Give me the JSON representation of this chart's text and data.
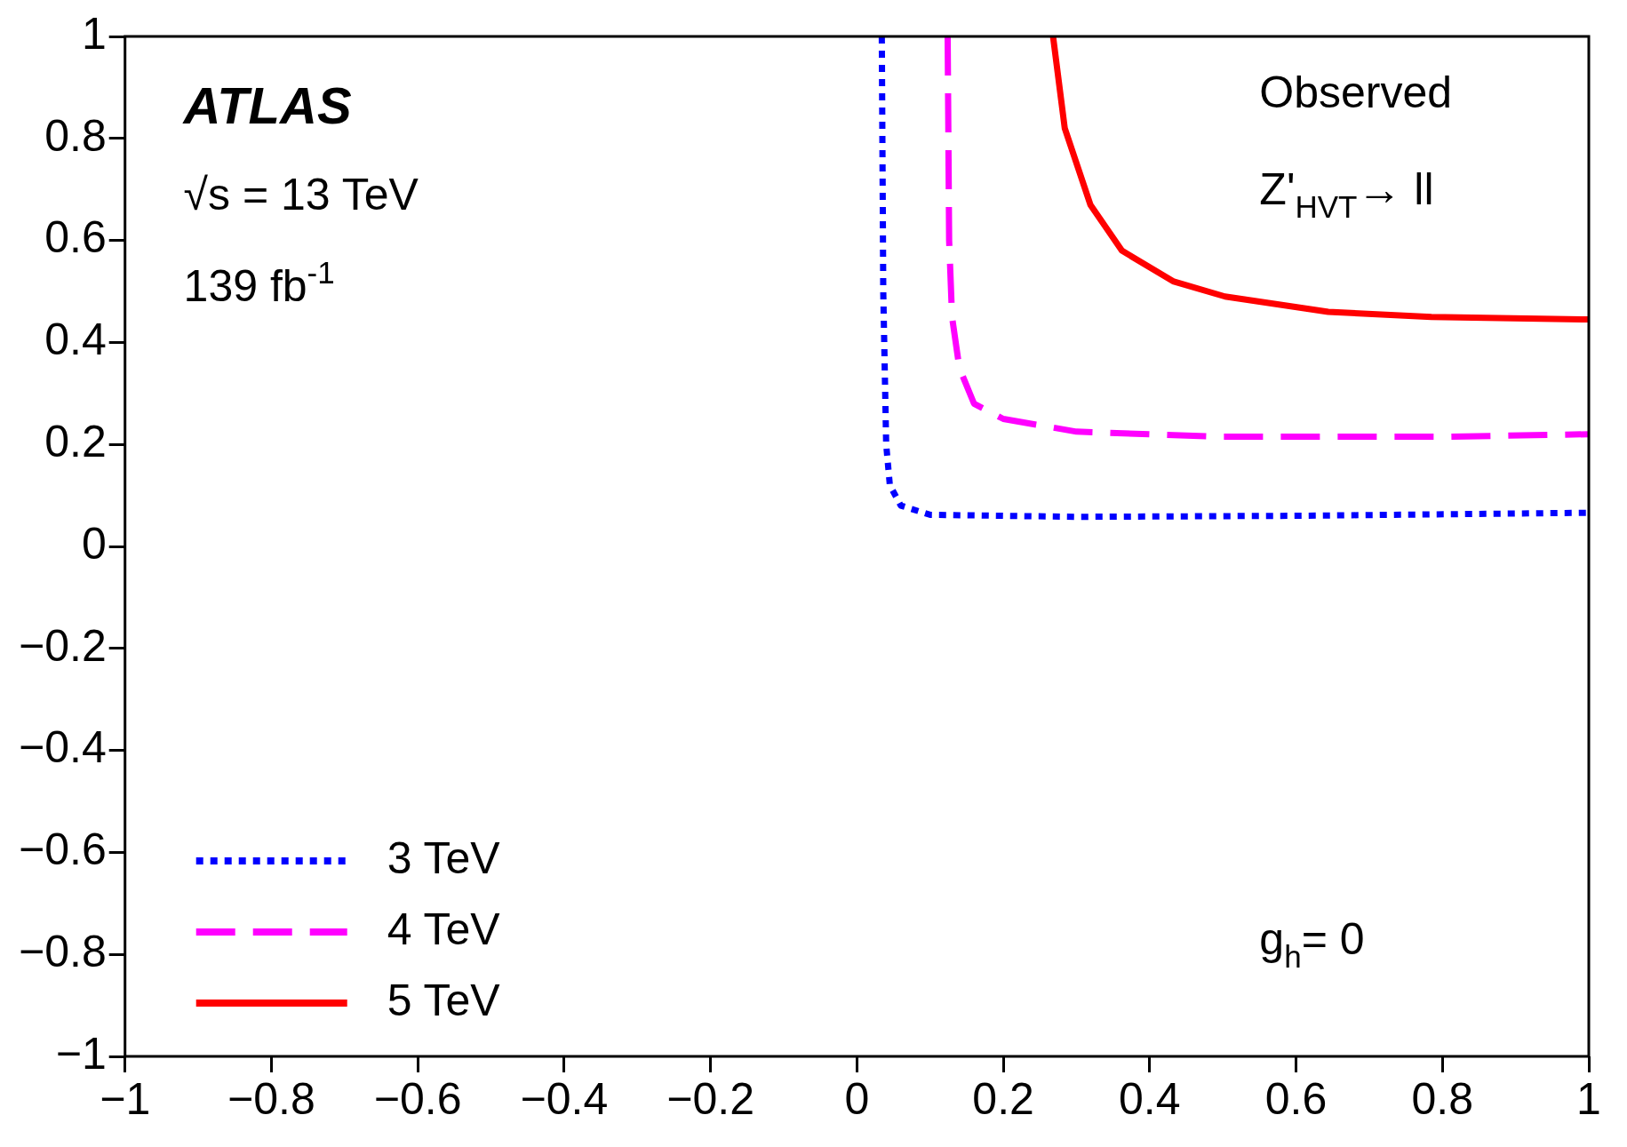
{
  "chart_data": {
    "type": "line",
    "xlim": [
      -1,
      1
    ],
    "ylim": [
      -1,
      1
    ],
    "xticks": [
      {
        "value": -1,
        "label": "−1"
      },
      {
        "value": -0.8,
        "label": "−0.8"
      },
      {
        "value": -0.6,
        "label": "−0.6"
      },
      {
        "value": -0.4,
        "label": "−0.4"
      },
      {
        "value": -0.2,
        "label": "−0.2"
      },
      0,
      0.2,
      0.4,
      0.6,
      0.8,
      1
    ],
    "yticks": [
      {
        "value": -1,
        "label": "−1"
      },
      {
        "value": -0.8,
        "label": "−0.8"
      },
      {
        "value": -0.6,
        "label": "−0.6"
      },
      {
        "value": -0.4,
        "label": "−0.4"
      },
      {
        "value": -0.2,
        "label": "−0.2"
      },
      0,
      0.2,
      0.4,
      0.6,
      0.8,
      1
    ],
    "grid": false,
    "legend": "bottom left",
    "marker": "none",
    "annotations": [
      "ATLAS",
      "√s = 13 TeV",
      "139 fb$^{-1}$",
      "Observed",
      "Z'$_{HVT}$→ ll",
      "g$_{h}$= 0"
    ],
    "series": [
      {
        "name": "3 TeV",
        "color": "#0000ff",
        "line_style": "dotted",
        "x": [
          0.034,
          0.036,
          0.04,
          0.045,
          0.06,
          0.1,
          0.3,
          0.6,
          1
        ],
        "values": [
          1,
          0.5,
          0.2,
          0.12,
          0.08,
          0.062,
          0.058,
          0.06,
          0.066
        ]
      },
      {
        "name": "4 TeV",
        "color": "#ff00ff",
        "line_style": "dashed",
        "x": [
          0.124,
          0.126,
          0.13,
          0.14,
          0.16,
          0.2,
          0.3,
          0.5,
          0.8,
          1
        ],
        "values": [
          1,
          0.6,
          0.45,
          0.35,
          0.28,
          0.25,
          0.225,
          0.215,
          0.215,
          0.22
        ]
      },
      {
        "name": "5 TeV",
        "color": "#ff0000",
        "line_style": "solid",
        "x": [
          0.268,
          0.284,
          0.319,
          0.362,
          0.432,
          0.503,
          0.644,
          0.785,
          1
        ],
        "values": [
          1,
          0.82,
          0.67,
          0.58,
          0.52,
          0.49,
          0.46,
          0.45,
          0.445
        ]
      }
    ]
  }
}
